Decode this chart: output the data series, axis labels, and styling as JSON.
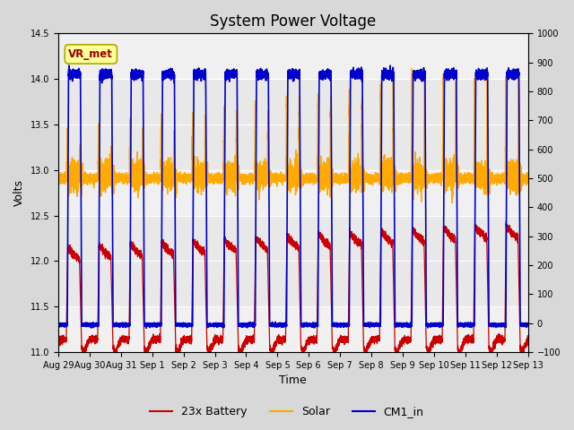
{
  "title": "System Power Voltage",
  "xlabel": "Time",
  "ylabel": "Volts",
  "ylim_left": [
    11.0,
    14.5
  ],
  "ylim_right": [
    -100,
    1000
  ],
  "yticks_left": [
    11.0,
    11.5,
    12.0,
    12.5,
    13.0,
    13.5,
    14.0,
    14.5
  ],
  "yticks_right": [
    -100,
    0,
    100,
    200,
    300,
    400,
    500,
    600,
    700,
    800,
    900,
    1000
  ],
  "xtick_labels": [
    "Aug 29",
    "Aug 30",
    "Aug 31",
    "Sep 1",
    "Sep 2",
    "Sep 3",
    "Sep 4",
    "Sep 5",
    "Sep 6",
    "Sep 7",
    "Sep 8",
    "Sep 9",
    "Sep 10",
    "Sep 11",
    "Sep 12",
    "Sep 13"
  ],
  "n_days": 15,
  "annotation_text": "VR_met",
  "annotation_color": "#990000",
  "annotation_bg": "#ffff99",
  "annotation_border": "#aaaa00",
  "bg_color": "#d8d8d8",
  "plot_bg_color": "#f0f0f0",
  "grid_color": "#ffffff",
  "band_color": "#dcdcdc",
  "title_fontsize": 12,
  "label_fontsize": 9,
  "legend_fontsize": 9,
  "tick_fontsize": 7,
  "bat_color": "#cc0000",
  "solar_color": "#ffaa00",
  "cm1_color": "#0000cc",
  "bat_lw": 0.9,
  "solar_lw": 1.0,
  "cm1_lw": 1.2
}
